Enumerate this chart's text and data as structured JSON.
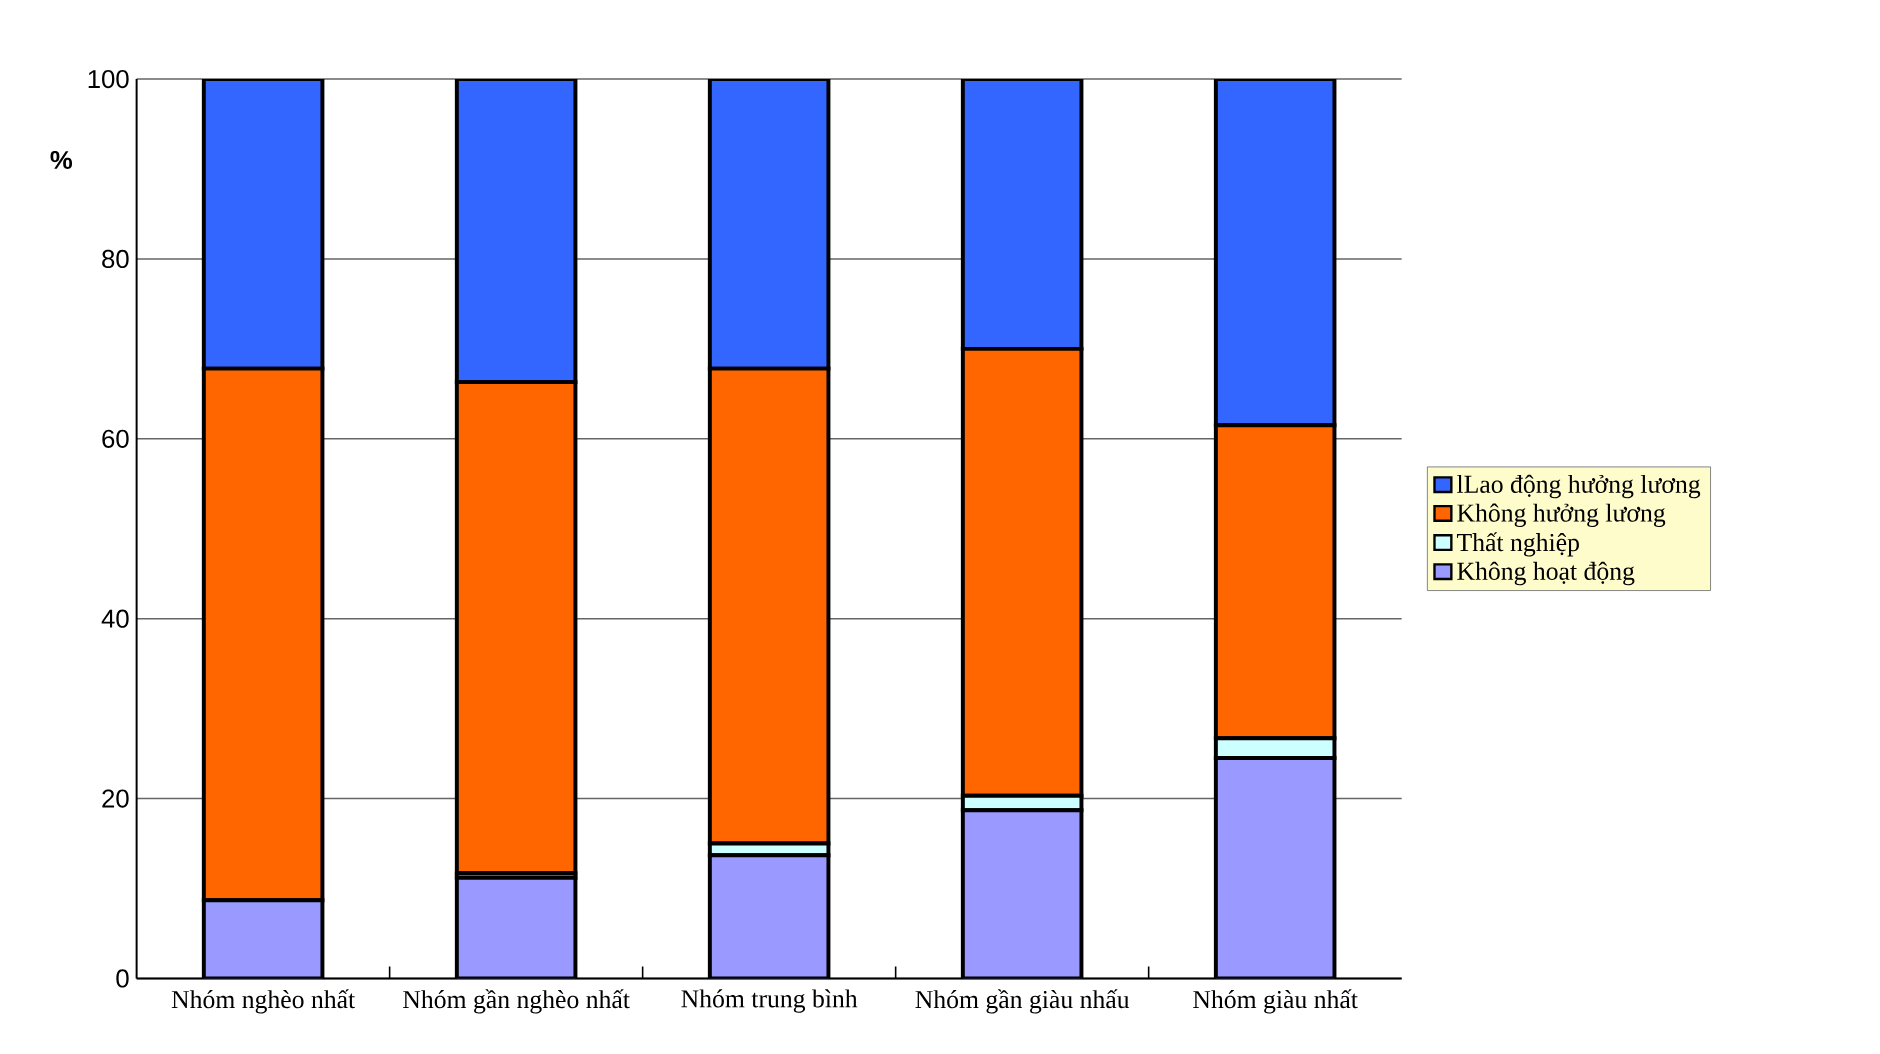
{
  "chart_data": {
    "type": "bar",
    "stacked": true,
    "ylabel": "%",
    "categories": [
      "Nhóm nghèo nhất",
      "Nhóm gần nghèo nhất",
      "Nhóm trung bình",
      "Nhóm gần giàu nhấu",
      "Nhóm giàu nhất"
    ],
    "series": [
      {
        "name": "Không hoạt động",
        "color": "#9999ff",
        "values": [
          8.7,
          11.2,
          13.7,
          18.7,
          24.5
        ]
      },
      {
        "name": "Thất nghiệp",
        "color": "#ccffff",
        "values": [
          null,
          0.5,
          1.3,
          1.6,
          2.2
        ]
      },
      {
        "name": "Không hưởng lương",
        "color": "#ff6600",
        "values": [
          59.1,
          54.6,
          52.8,
          49.7,
          34.8
        ]
      },
      {
        "name": "lLao động hưởng lương",
        "color": "#3366ff",
        "values": [
          32.2,
          33.7,
          32.2,
          30.0,
          38.5
        ]
      }
    ],
    "ylim": [
      0,
      100
    ],
    "yticks": [
      0,
      20,
      40,
      60,
      80,
      100
    ],
    "grid": "y",
    "legend": "right"
  }
}
